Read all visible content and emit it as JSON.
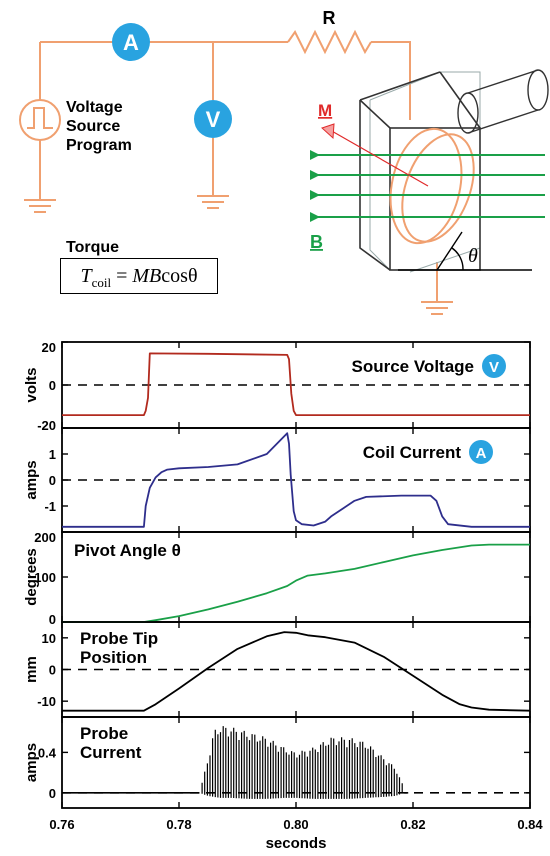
{
  "schematic": {
    "resistor_label": "R",
    "ammeter_symbol": "A",
    "voltmeter_symbol": "V",
    "source_label_lines": [
      "Voltage",
      "Source",
      "Program"
    ],
    "moment_label": "M",
    "field_label": "B",
    "angle_label": "θ",
    "torque_heading": "Torque",
    "torque_equation": {
      "T": "T",
      "sub": "coil",
      "rest": " = ",
      "M": "M",
      "B": "B",
      "cos": "cos",
      "theta": "θ"
    },
    "colors": {
      "wire": "#f0a070",
      "meter": "#29a3e0",
      "field": "#1aa048",
      "moment": "#e02a2a"
    }
  },
  "chart_data": [
    {
      "type": "line",
      "title": "Source Voltage",
      "badge": "V",
      "ylabel": "volts",
      "ylim": [
        -20,
        20
      ],
      "yticks": [
        20,
        0,
        -20
      ],
      "xlim": [
        0.76,
        0.84
      ],
      "color": "#b22a1e",
      "x": [
        0.76,
        0.774,
        0.7743,
        0.7747,
        0.775,
        0.785,
        0.7985,
        0.7988,
        0.7992,
        0.7996,
        0.8,
        0.84
      ],
      "y": [
        -14,
        -14,
        -12,
        -6,
        14.7,
        14.5,
        14,
        12,
        -4,
        -12,
        -14,
        -14
      ]
    },
    {
      "type": "line",
      "title": "Coil Current",
      "badge": "A",
      "ylabel": "amps",
      "ylim": [
        -2,
        2
      ],
      "yticks": [
        1,
        0,
        -1
      ],
      "xlim": [
        0.76,
        0.84
      ],
      "color": "#2e2e8c",
      "x": [
        0.76,
        0.774,
        0.7743,
        0.775,
        0.776,
        0.777,
        0.778,
        0.78,
        0.785,
        0.79,
        0.795,
        0.7985,
        0.7988,
        0.7991,
        0.7996,
        0.8,
        0.801,
        0.803,
        0.805,
        0.806,
        0.808,
        0.81,
        0.812,
        0.818,
        0.823,
        0.824,
        0.825,
        0.826,
        0.83,
        0.84
      ],
      "y": [
        -1.8,
        -1.8,
        -1.0,
        -0.3,
        0.1,
        0.3,
        0.4,
        0.45,
        0.5,
        0.6,
        1.0,
        1.8,
        1.4,
        0.2,
        -1.2,
        -1.55,
        -1.7,
        -1.75,
        -1.6,
        -1.4,
        -1.1,
        -0.8,
        -0.65,
        -0.6,
        -0.6,
        -0.8,
        -1.4,
        -1.7,
        -1.8,
        -1.8
      ]
    },
    {
      "type": "line",
      "title": "Pivot Angle θ",
      "ylabel": "degrees",
      "ylim": [
        0,
        200
      ],
      "yticks": [
        200,
        100,
        0
      ],
      "xlim": [
        0.76,
        0.84
      ],
      "color": "#1aa048",
      "x": [
        0.76,
        0.774,
        0.776,
        0.78,
        0.785,
        0.79,
        0.795,
        0.7985,
        0.8,
        0.802,
        0.805,
        0.81,
        0.815,
        0.82,
        0.825,
        0.83,
        0.833,
        0.84
      ],
      "y": [
        0,
        0,
        4,
        13,
        28,
        45,
        64,
        80,
        92,
        103,
        108,
        118,
        133,
        148,
        160,
        170,
        172,
        172
      ]
    },
    {
      "type": "line",
      "title": "Probe Tip Position",
      "title_lines": [
        "Probe Tip",
        "Position"
      ],
      "ylabel": "mm",
      "ylim": [
        -15,
        15
      ],
      "yticks": [
        10,
        0,
        -10
      ],
      "xlim": [
        0.76,
        0.84
      ],
      "color": "#000000",
      "x": [
        0.76,
        0.774,
        0.776,
        0.78,
        0.785,
        0.79,
        0.795,
        0.798,
        0.8,
        0.802,
        0.805,
        0.81,
        0.815,
        0.82,
        0.825,
        0.828,
        0.83,
        0.833,
        0.84
      ],
      "y": [
        -13,
        -13,
        -11,
        -6,
        0.5,
        6.5,
        10.5,
        11.8,
        11.6,
        10.8,
        10.2,
        8.5,
        4,
        -2,
        -8,
        -11,
        -12,
        -12.7,
        -13
      ]
    },
    {
      "type": "line",
      "title": "Probe Current",
      "title_lines": [
        "Probe",
        "Current"
      ],
      "ylabel": "amps",
      "ylim": [
        -0.15,
        0.75
      ],
      "yticks": [
        0.4,
        0
      ],
      "xlim": [
        0.76,
        0.84
      ],
      "xticks": [
        0.76,
        0.78,
        0.8,
        0.82,
        0.84
      ],
      "xlabel": "seconds",
      "color": "#000000",
      "envelope": {
        "x": [
          0.7835,
          0.785,
          0.786,
          0.787,
          0.789,
          0.792,
          0.795,
          0.798,
          0.8,
          0.803,
          0.806,
          0.809,
          0.812,
          0.815,
          0.817,
          0.8185
        ],
        "top": [
          0.0,
          0.35,
          0.62,
          0.67,
          0.65,
          0.6,
          0.55,
          0.45,
          0.4,
          0.45,
          0.55,
          0.55,
          0.5,
          0.35,
          0.25,
          0.05
        ],
        "bot": [
          0.0,
          -0.03,
          -0.04,
          -0.05,
          -0.05,
          -0.06,
          -0.06,
          -0.05,
          -0.05,
          -0.06,
          -0.06,
          -0.06,
          -0.05,
          -0.04,
          -0.03,
          0.0
        ],
        "spike_period": 0.00045
      },
      "baseline": 0
    }
  ]
}
